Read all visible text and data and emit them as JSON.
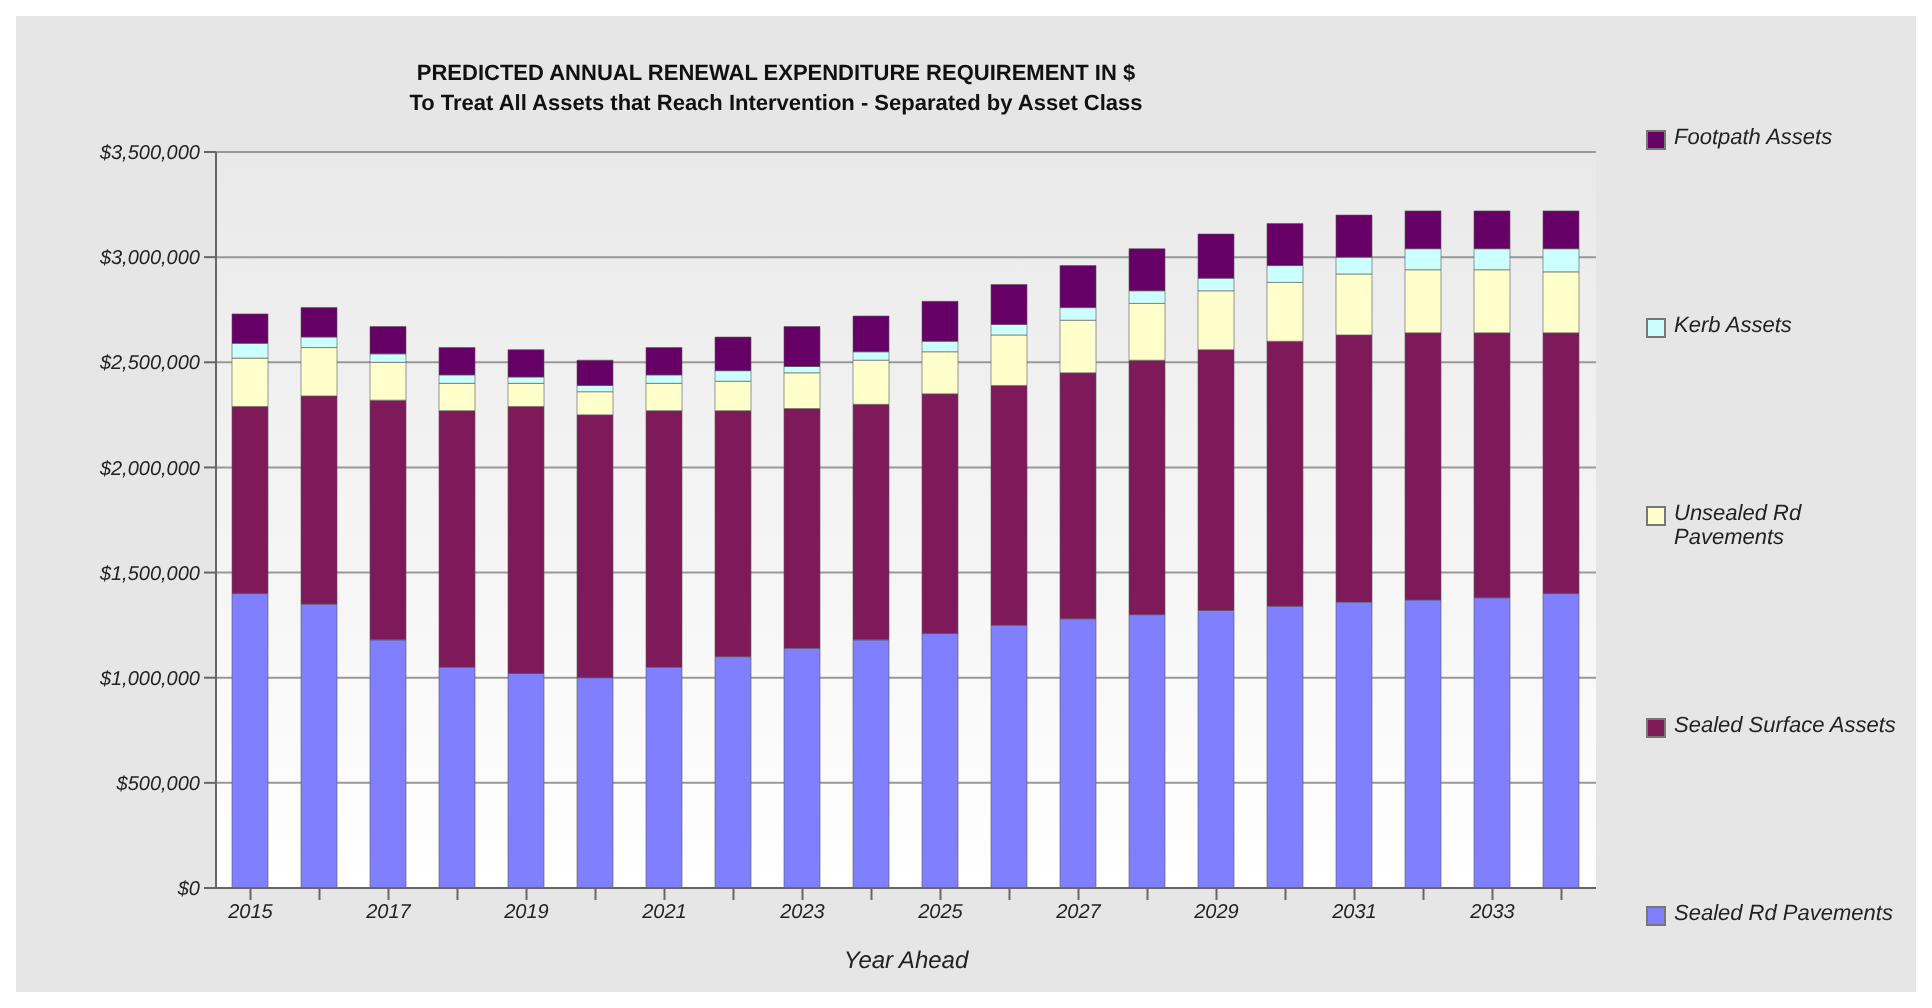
{
  "chart_data": {
    "type": "bar",
    "stacked": true,
    "title": "PREDICTED ANNUAL RENEWAL EXPENDITURE REQUIREMENT IN $",
    "subtitle": "To Treat All Assets that Reach Intervention - Separated by Asset Class",
    "xlabel": "Year Ahead",
    "categories": [
      "2015",
      null,
      "2017",
      null,
      "2019",
      null,
      "2021",
      null,
      "2023",
      null,
      "2025",
      null,
      "2027",
      null,
      "2029",
      null,
      "2031",
      null,
      "2033",
      null
    ],
    "series": [
      {
        "name": "Sealed Rd Pavements",
        "color": "#8080ff",
        "values": [
          1400000,
          1350000,
          1180000,
          1050000,
          1020000,
          1000000,
          1050000,
          1100000,
          1140000,
          1180000,
          1210000,
          1250000,
          1280000,
          1300000,
          1320000,
          1340000,
          1360000,
          1370000,
          1380000,
          1400000
        ]
      },
      {
        "name": "Sealed Surface Assets",
        "color": "#7f1a5a",
        "values": [
          890000,
          990000,
          1140000,
          1220000,
          1270000,
          1250000,
          1220000,
          1170000,
          1140000,
          1120000,
          1140000,
          1140000,
          1170000,
          1210000,
          1240000,
          1260000,
          1270000,
          1270000,
          1260000,
          1240000
        ]
      },
      {
        "name": "Unsealed Rd Pavements",
        "color": "#ffffcc",
        "values": [
          230000,
          230000,
          180000,
          130000,
          110000,
          110000,
          130000,
          140000,
          170000,
          210000,
          200000,
          240000,
          250000,
          270000,
          280000,
          280000,
          290000,
          300000,
          300000,
          290000
        ]
      },
      {
        "name": "Kerb Assets",
        "color": "#ccffff",
        "values": [
          70000,
          50000,
          40000,
          40000,
          30000,
          30000,
          40000,
          50000,
          30000,
          40000,
          50000,
          50000,
          60000,
          60000,
          60000,
          80000,
          80000,
          100000,
          100000,
          110000
        ]
      },
      {
        "name": "Footpath Assets",
        "color": "#660066",
        "values": [
          140000,
          140000,
          130000,
          130000,
          130000,
          120000,
          130000,
          160000,
          190000,
          170000,
          190000,
          190000,
          200000,
          200000,
          210000,
          200000,
          200000,
          180000,
          180000,
          180000
        ]
      }
    ],
    "ylim": [
      0,
      3500000
    ],
    "yticks": [
      {
        "value": 0,
        "label": "$0"
      },
      {
        "value": 500000,
        "label": "$500,000"
      },
      {
        "value": 1000000,
        "label": "$1,000,000"
      },
      {
        "value": 1500000,
        "label": "$1,500,000"
      },
      {
        "value": 2000000,
        "label": "$2,000,000"
      },
      {
        "value": 2500000,
        "label": "$2,500,000"
      },
      {
        "value": 3000000,
        "label": "$3,000,000"
      },
      {
        "value": 3500000,
        "label": "$3,500,000"
      }
    ],
    "grid": "y",
    "legend": "right"
  }
}
